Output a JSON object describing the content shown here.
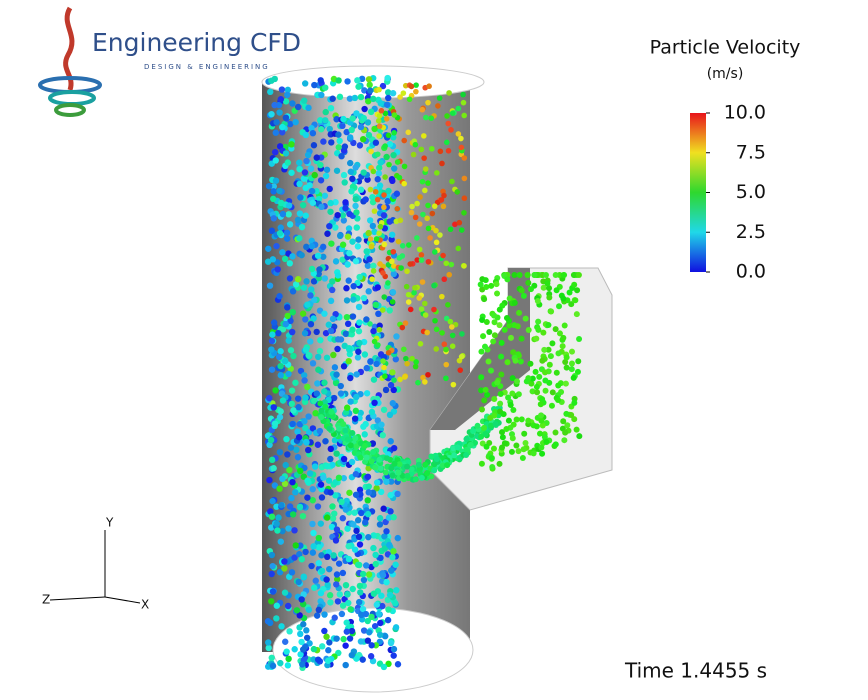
{
  "logo": {
    "name": "Engineering CFD",
    "tagline": "DESIGN & ENGINEERING"
  },
  "colorbar": {
    "title": "Particle Velocity",
    "unit": "(m/s)",
    "ticks": [
      {
        "value": 10,
        "label": "10.0"
      },
      {
        "value": 7.5,
        "label": "7.5"
      },
      {
        "value": 5,
        "label": "5.0"
      },
      {
        "value": 2.5,
        "label": "2.5"
      },
      {
        "value": 0,
        "label": "0.0"
      }
    ]
  },
  "time": "Time 1.4455 s",
  "axes": {
    "y": "Y",
    "z": "Z",
    "x": "X"
  }
}
